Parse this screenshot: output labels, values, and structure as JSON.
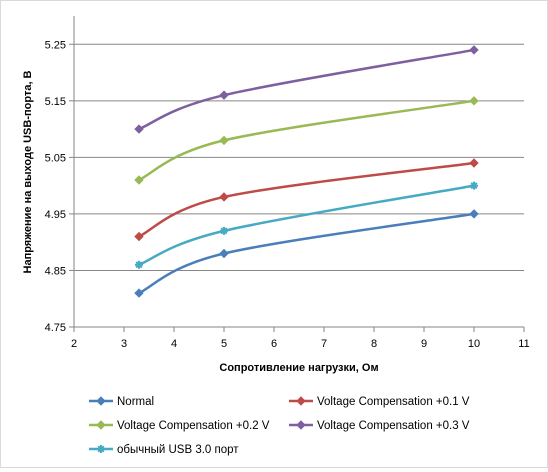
{
  "chart_data": {
    "type": "scatter",
    "title": "",
    "xlabel": "Сопротивление  нагрузки, Ом",
    "ylabel": "Напряжение  на выходе USB-порта, В",
    "xlim": [
      2,
      11
    ],
    "ylim": [
      4.75,
      5.3
    ],
    "x_ticks": [
      "2",
      "3",
      "4",
      "5",
      "6",
      "7",
      "8",
      "9",
      "10",
      "11"
    ],
    "y_ticks": [
      "4.75",
      "4.85",
      "4.95",
      "5.05",
      "5.15",
      "5.25"
    ],
    "grid": "horizontal",
    "line_style": "smoothed lines with markers",
    "legend_position": "bottom",
    "series": [
      {
        "name": "Normal",
        "color": "#4a7ebb",
        "marker": "diamond",
        "points": [
          [
            3.3,
            4.81
          ],
          [
            5,
            4.88
          ],
          [
            10,
            4.95
          ]
        ]
      },
      {
        "name": "Voltage Compensation +0.1 V",
        "color": "#be4b48",
        "marker": "diamond",
        "points": [
          [
            3.3,
            4.91
          ],
          [
            5,
            4.98
          ],
          [
            10,
            5.04
          ]
        ]
      },
      {
        "name": "Voltage Compensation +0.2 V",
        "color": "#98b954",
        "marker": "diamond",
        "points": [
          [
            3.3,
            5.01
          ],
          [
            5,
            5.08
          ],
          [
            10,
            5.15
          ]
        ]
      },
      {
        "name": "Voltage Compensation +0.3 V",
        "color": "#7d60a0",
        "marker": "diamond",
        "points": [
          [
            3.3,
            5.1
          ],
          [
            5,
            5.16
          ],
          [
            10,
            5.24
          ]
        ]
      },
      {
        "name": "обычный USB 3.0 порт",
        "color": "#46aac5",
        "marker": "star",
        "points": [
          [
            3.3,
            4.86
          ],
          [
            5,
            4.92
          ],
          [
            10,
            5.0
          ]
        ]
      }
    ]
  }
}
